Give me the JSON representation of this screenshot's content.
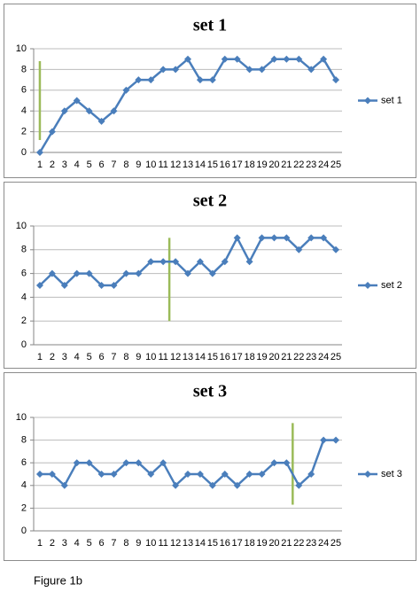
{
  "caption": "Figure 1b",
  "chart_data": [
    {
      "type": "line",
      "title": "set 1",
      "categories": [
        1,
        2,
        3,
        4,
        5,
        6,
        7,
        8,
        9,
        10,
        11,
        12,
        13,
        14,
        15,
        16,
        17,
        18,
        19,
        20,
        21,
        22,
        23,
        24,
        25
      ],
      "series": [
        {
          "name": "set 1",
          "color": "#4a7ebb",
          "values": [
            0,
            2,
            4,
            5,
            4,
            3,
            4,
            6,
            7,
            7,
            8,
            8,
            9,
            7,
            7,
            9,
            9,
            8,
            8,
            9,
            9,
            9,
            8,
            9,
            7
          ]
        }
      ],
      "ylim": [
        0,
        10
      ],
      "yticks": [
        0,
        2,
        4,
        6,
        8,
        10
      ],
      "grid": true,
      "legend": "right",
      "vline": {
        "x": 1,
        "from": 1.2,
        "to": 8.8,
        "color": "#9bbb59"
      }
    },
    {
      "type": "line",
      "title": "set 2",
      "categories": [
        1,
        2,
        3,
        4,
        5,
        6,
        7,
        8,
        9,
        10,
        11,
        12,
        13,
        14,
        15,
        16,
        17,
        18,
        19,
        20,
        21,
        22,
        23,
        24,
        25
      ],
      "series": [
        {
          "name": "set 2",
          "color": "#4a7ebb",
          "values": [
            5,
            6,
            5,
            6,
            6,
            5,
            5,
            6,
            6,
            7,
            7,
            7,
            6,
            7,
            6,
            7,
            9,
            7,
            9,
            9,
            9,
            8,
            9,
            9,
            8
          ]
        }
      ],
      "ylim": [
        0,
        10
      ],
      "yticks": [
        0,
        2,
        4,
        6,
        8,
        10
      ],
      "grid": true,
      "legend": "right",
      "vline": {
        "x": 11.5,
        "from": 2,
        "to": 9,
        "color": "#9bbb59"
      }
    },
    {
      "type": "line",
      "title": "set 3",
      "categories": [
        1,
        2,
        3,
        4,
        5,
        6,
        7,
        8,
        9,
        10,
        11,
        12,
        13,
        14,
        15,
        16,
        17,
        18,
        19,
        20,
        21,
        22,
        23,
        24,
        25
      ],
      "series": [
        {
          "name": "set 3",
          "color": "#4a7ebb",
          "values": [
            5,
            5,
            4,
            6,
            6,
            5,
            5,
            6,
            6,
            5,
            6,
            4,
            5,
            5,
            4,
            5,
            4,
            5,
            5,
            6,
            6,
            4,
            5,
            8,
            8
          ]
        }
      ],
      "ylim": [
        0,
        10
      ],
      "yticks": [
        0,
        2,
        4,
        6,
        8,
        10
      ],
      "grid": true,
      "legend": "right",
      "vline": {
        "x": 21.5,
        "from": 2.3,
        "to": 9.5,
        "color": "#9bbb59"
      }
    }
  ]
}
